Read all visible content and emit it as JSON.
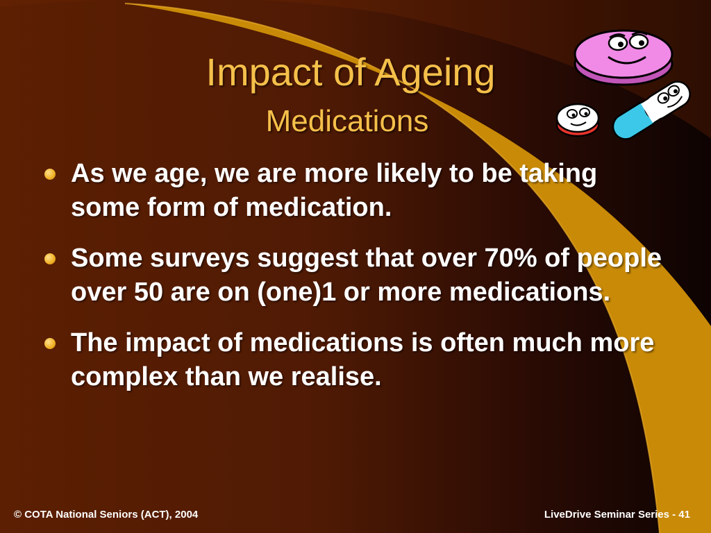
{
  "slide": {
    "title": "Impact of Ageing",
    "subtitle": "Medications",
    "bullets": [
      "As we age, we are more likely to be taking some form of medication.",
      "Some surveys suggest that over 70% of people over 50 are on (one)1 or more medications.",
      "The impact of medications is often much more complex than we realise."
    ],
    "footer_left": "© COTA National Seniors (ACT), 2004",
    "footer_right": "LiveDrive Seminar Series - 41",
    "illustration_icon": "smiling-pills-icon"
  },
  "colors": {
    "title": "#f5c04a",
    "body_text": "#ffffff",
    "swoosh": "#c98a07",
    "background_left": "#5c1f02",
    "background_right": "#0d0302"
  }
}
